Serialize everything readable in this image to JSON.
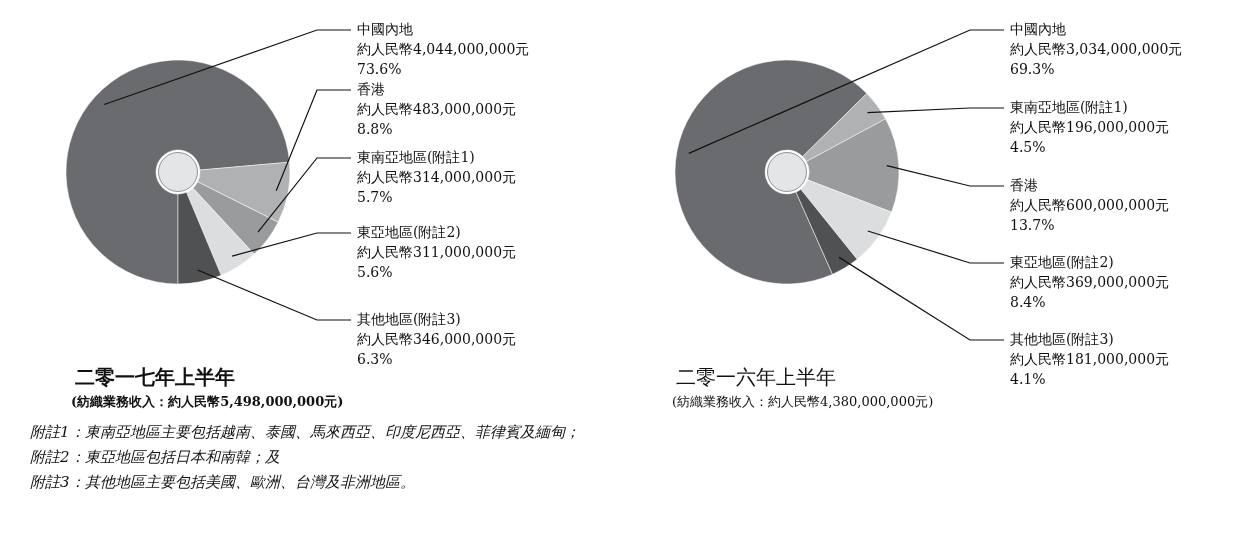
{
  "chart_data": [
    {
      "type": "pie",
      "title": "二零一七年上半年",
      "subtitle": "(紡織業務收入：約人民幣5,498,000,000元)",
      "categories": [
        "中國內地",
        "香港",
        "東南亞地區(附註1)",
        "東亞地區(附註2)",
        "其他地區(附註3)"
      ],
      "values": [
        73.6,
        8.8,
        5.7,
        5.6,
        6.3
      ],
      "colors": [
        "#6a6b6e",
        "#b0b1b3",
        "#9a9b9d",
        "#dcdddf",
        "#505153"
      ],
      "value_labels": [
        "約人民幣4,044,000,000元\n73.6%",
        "約人民幣483,000,000元\n8.8%",
        "約人民幣314,000,000元\n5.7%",
        "約人民幣311,000,000元\n5.6%",
        "約人民幣346,000,000元\n6.3%"
      ],
      "annotations": [
        "附註1：東南亞地區主要包括越南、泰國、馬來西亞、印度尼西亞、菲律賓及緬甸；",
        "附註2：東亞地區包括日本和南韓；及",
        "附註3：其他地區主要包括美國、歐洲、台灣及非洲地區。"
      ]
    },
    {
      "type": "pie",
      "title": "二零一六年上半年",
      "subtitle": "(紡織業務收入：約人民幣4,380,000,000元)",
      "categories": [
        "中國內地",
        "東南亞地區(附註1)",
        "香港",
        "東亞地區(附註2)",
        "其他地區(附註3)"
      ],
      "values": [
        69.3,
        4.5,
        13.7,
        8.4,
        4.1
      ],
      "colors": [
        "#6a6b6e",
        "#b0b1b3",
        "#9a9b9d",
        "#dcdddf",
        "#505153"
      ],
      "value_labels": [
        "約人民幣3,034,000,000元\n69.3%",
        "約人民幣196,000,000元\n4.5%",
        "約人民幣600,000,000元\n13.7%",
        "約人民幣369,000,000元\n8.4%",
        "約人民幣181,000,000元\n4.1%"
      ]
    }
  ]
}
